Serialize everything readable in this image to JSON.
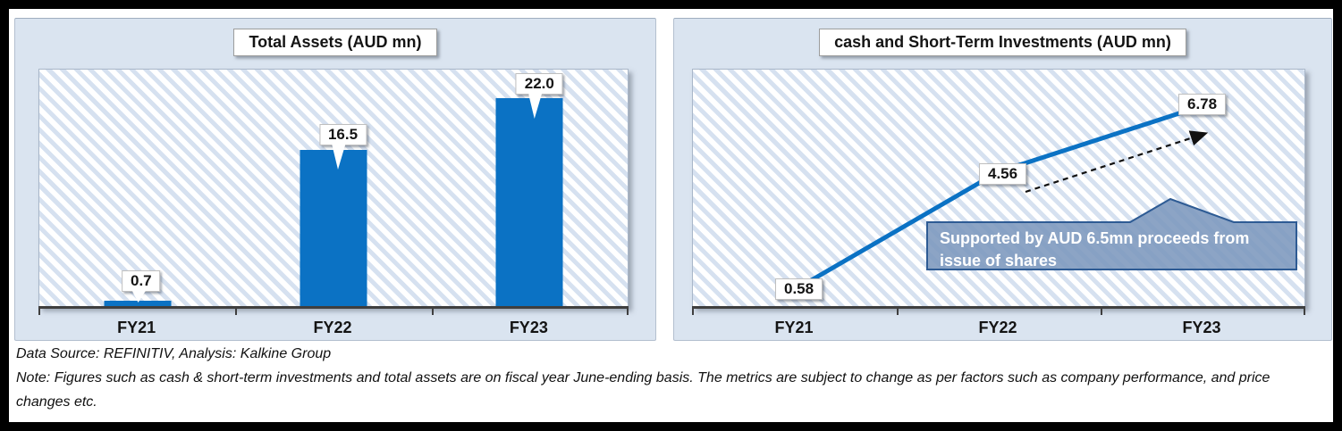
{
  "chart_data": [
    {
      "type": "bar",
      "title": "Total Assets (AUD mn)",
      "categories": [
        "FY21",
        "FY22",
        "FY23"
      ],
      "values": [
        0.7,
        16.5,
        22.0
      ],
      "data_labels": [
        "0.7",
        "16.5",
        "22.0"
      ],
      "xlabel": "",
      "ylabel": "",
      "ylim": [
        0,
        25
      ],
      "grid": false,
      "legend": "none",
      "bar_color": "#0b72c4"
    },
    {
      "type": "line",
      "title": "cash and Short-Term Investments (AUD mn)",
      "categories": [
        "FY21",
        "FY22",
        "FY23"
      ],
      "values": [
        0.58,
        4.56,
        6.78
      ],
      "data_labels": [
        "0.58",
        "4.56",
        "6.78"
      ],
      "xlabel": "",
      "ylabel": "",
      "ylim": [
        0,
        8
      ],
      "grid": false,
      "legend": "none",
      "line_color": "#0b72c4",
      "annotation": "Supported by AUD 6.5mn proceeds from issue of shares",
      "annotation_style": "steel-blue callout box with upward peak",
      "trend_arrow": "black dashed arrow pointing up-right between FY22 and FY23"
    }
  ],
  "footer": {
    "source": "Data Source: REFINITIV, Analysis: Kalkine Group",
    "note": "Note: Figures such as cash & short-term investments and total assets are on fiscal year June-ending basis. The metrics are subject to change as per factors such as company performance, and price changes etc."
  },
  "colors": {
    "series_blue": "#0b72c4",
    "panel_background": "#dae4f0",
    "hatch_stripe": "#d6e1f0",
    "axis": "#3f3f3f",
    "callout_fill": "rgba(124,151,189,0.88)",
    "callout_border": "#2e5b94",
    "frame": "#000000"
  }
}
